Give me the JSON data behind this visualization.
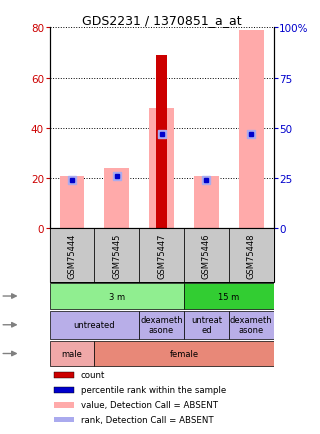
{
  "title": "GDS2231 / 1370851_a_at",
  "samples": [
    "GSM75444",
    "GSM75445",
    "GSM75447",
    "GSM75446",
    "GSM75448"
  ],
  "count_values": [
    0,
    0,
    69,
    0,
    0
  ],
  "pink_bar_values": [
    21,
    24,
    48,
    21,
    79
  ],
  "blue_sq_values": [
    24,
    26,
    47,
    24,
    47
  ],
  "lightblue_sq_values": [
    24,
    26,
    47,
    24,
    47
  ],
  "ylim_left": [
    0,
    80
  ],
  "ylim_right": [
    0,
    100
  ],
  "yticks_left": [
    0,
    20,
    40,
    60,
    80
  ],
  "yticks_right": [
    0,
    25,
    50,
    75,
    100
  ],
  "left_label_color": "#cc0000",
  "right_label_color": "#0000cc",
  "age_spans": [
    [
      0,
      3,
      "3 m",
      "#90ee90"
    ],
    [
      3,
      5,
      "15 m",
      "#32cd32"
    ]
  ],
  "agent_spans": [
    [
      0,
      2,
      "untreated",
      "#b8aee8"
    ],
    [
      2,
      3,
      "dexameth\nasone",
      "#b8aee8"
    ],
    [
      3,
      4,
      "untreat\ned",
      "#b8aee8"
    ],
    [
      4,
      5,
      "dexameth\nasone",
      "#b8aee8"
    ]
  ],
  "gender_spans": [
    [
      0,
      1,
      "male",
      "#f0a8a8"
    ],
    [
      1,
      5,
      "female",
      "#e88878"
    ]
  ],
  "legend_items": [
    [
      "count",
      "#cc0000",
      "square"
    ],
    [
      "percentile rank within the sample",
      "#0000cc",
      "square"
    ],
    [
      "value, Detection Call = ABSENT",
      "#ffaaaa",
      "square"
    ],
    [
      "rank, Detection Call = ABSENT",
      "#aaaaee",
      "square"
    ]
  ],
  "n_samples": 5
}
